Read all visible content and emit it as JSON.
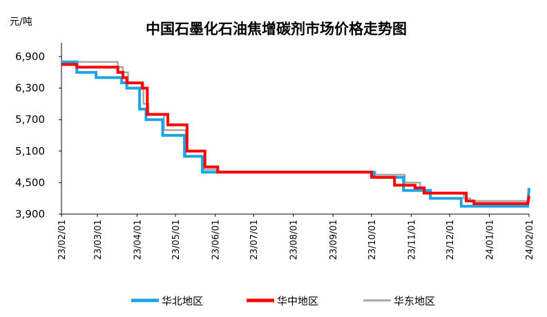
{
  "chart_data": {
    "type": "line",
    "title": "中国石墨化石油焦增碳剂市场价格走势图",
    "ylabel": "元/吨",
    "xlabel": "",
    "ylim": [
      3900,
      6900
    ],
    "yticks": [
      "6,900",
      "6,300",
      "5,700",
      "5,100",
      "4,500",
      "3,900"
    ],
    "ytick_values": [
      6900,
      6300,
      5700,
      5100,
      4500,
      3900
    ],
    "xlim": [
      "2023-02-01",
      "2024-02-01"
    ],
    "xticks": [
      "23/02/01",
      "23/03/01",
      "23/04/01",
      "23/05/01",
      "23/06/01",
      "23/07/01",
      "23/08/01",
      "23/09/01",
      "23/10/01",
      "23/11/01",
      "23/12/01",
      "24/01/01",
      "24/02/01"
    ],
    "xtick_dates": [
      "2023-02-01",
      "2023-03-01",
      "2023-04-01",
      "2023-05-01",
      "2023-06-01",
      "2023-07-01",
      "2023-08-01",
      "2023-09-01",
      "2023-10-01",
      "2023-11-01",
      "2023-12-01",
      "2024-01-01",
      "2024-02-01"
    ],
    "legend_position": "bottom",
    "grid": false,
    "series": [
      {
        "name": "华北地区",
        "color": "#1AA5E3",
        "points": [
          [
            "2023-02-01",
            6800
          ],
          [
            "2023-02-13",
            6800
          ],
          [
            "2023-02-13",
            6600
          ],
          [
            "2023-02-28",
            6600
          ],
          [
            "2023-02-28",
            6500
          ],
          [
            "2023-03-20",
            6500
          ],
          [
            "2023-03-20",
            6400
          ],
          [
            "2023-03-24",
            6400
          ],
          [
            "2023-03-24",
            6300
          ],
          [
            "2023-04-03",
            6300
          ],
          [
            "2023-04-03",
            5900
          ],
          [
            "2023-04-08",
            5900
          ],
          [
            "2023-04-08",
            5700
          ],
          [
            "2023-04-21",
            5700
          ],
          [
            "2023-04-21",
            5400
          ],
          [
            "2023-05-08",
            5400
          ],
          [
            "2023-05-08",
            5000
          ],
          [
            "2023-05-22",
            5000
          ],
          [
            "2023-05-22",
            4700
          ],
          [
            "2023-06-01",
            4700
          ],
          [
            "2023-10-03",
            4700
          ],
          [
            "2023-10-03",
            4600
          ],
          [
            "2023-10-26",
            4600
          ],
          [
            "2023-10-26",
            4350
          ],
          [
            "2023-11-16",
            4350
          ],
          [
            "2023-11-16",
            4200
          ],
          [
            "2023-12-10",
            4200
          ],
          [
            "2023-12-10",
            4050
          ],
          [
            "2024-01-31",
            4050
          ],
          [
            "2024-02-01",
            4400
          ]
        ]
      },
      {
        "name": "华中地区",
        "color": "#FF0000",
        "points": [
          [
            "2023-02-01",
            6750
          ],
          [
            "2023-02-13",
            6750
          ],
          [
            "2023-02-13",
            6700
          ],
          [
            "2023-03-17",
            6700
          ],
          [
            "2023-03-17",
            6600
          ],
          [
            "2023-03-21",
            6600
          ],
          [
            "2023-03-21",
            6500
          ],
          [
            "2023-03-24",
            6500
          ],
          [
            "2023-03-24",
            6400
          ],
          [
            "2023-04-05",
            6400
          ],
          [
            "2023-04-05",
            6300
          ],
          [
            "2023-04-09",
            6300
          ],
          [
            "2023-04-09",
            5800
          ],
          [
            "2023-04-25",
            5800
          ],
          [
            "2023-04-25",
            5600
          ],
          [
            "2023-05-10",
            5600
          ],
          [
            "2023-05-10",
            5100
          ],
          [
            "2023-05-24",
            5100
          ],
          [
            "2023-05-24",
            4800
          ],
          [
            "2023-06-03",
            4800
          ],
          [
            "2023-06-03",
            4700
          ],
          [
            "2023-10-01",
            4700
          ],
          [
            "2023-10-01",
            4600
          ],
          [
            "2023-10-19",
            4600
          ],
          [
            "2023-10-19",
            4450
          ],
          [
            "2023-11-04",
            4450
          ],
          [
            "2023-11-04",
            4400
          ],
          [
            "2023-11-11",
            4400
          ],
          [
            "2023-11-11",
            4300
          ],
          [
            "2023-12-14",
            4300
          ],
          [
            "2023-12-14",
            4150
          ],
          [
            "2023-12-20",
            4150
          ],
          [
            "2023-12-20",
            4100
          ],
          [
            "2024-01-31",
            4100
          ],
          [
            "2024-02-01",
            4250
          ]
        ]
      },
      {
        "name": "华东地区",
        "color": "#A6A6A6",
        "points": [
          [
            "2023-02-01",
            6800
          ],
          [
            "2023-03-17",
            6800
          ],
          [
            "2023-03-17",
            6700
          ],
          [
            "2023-03-21",
            6700
          ],
          [
            "2023-03-21",
            6600
          ],
          [
            "2023-03-25",
            6600
          ],
          [
            "2023-03-25",
            6400
          ],
          [
            "2023-04-06",
            6400
          ],
          [
            "2023-04-06",
            6000
          ],
          [
            "2023-04-10",
            6000
          ],
          [
            "2023-04-10",
            5800
          ],
          [
            "2023-04-22",
            5800
          ],
          [
            "2023-04-22",
            5500
          ],
          [
            "2023-05-09",
            5500
          ],
          [
            "2023-05-09",
            5000
          ],
          [
            "2023-05-23",
            5000
          ],
          [
            "2023-05-23",
            4750
          ],
          [
            "2023-06-02",
            4750
          ],
          [
            "2023-06-02",
            4700
          ],
          [
            "2023-10-04",
            4700
          ],
          [
            "2023-10-04",
            4650
          ],
          [
            "2023-10-27",
            4650
          ],
          [
            "2023-10-27",
            4500
          ],
          [
            "2023-11-08",
            4500
          ],
          [
            "2023-11-08",
            4400
          ],
          [
            "2023-11-12",
            4400
          ],
          [
            "2023-11-12",
            4300
          ],
          [
            "2023-12-12",
            4300
          ],
          [
            "2023-12-12",
            4200
          ],
          [
            "2023-12-17",
            4200
          ],
          [
            "2023-12-17",
            4150
          ],
          [
            "2024-02-01",
            4150
          ]
        ]
      }
    ]
  }
}
